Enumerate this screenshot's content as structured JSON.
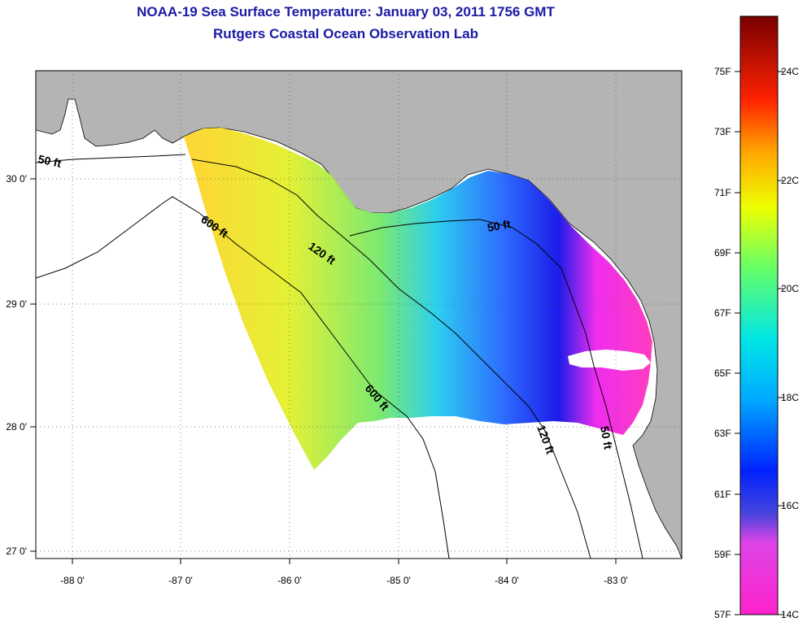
{
  "header": {
    "title": "NOAA-19 Sea Surface Temperature:  January 03, 2011 1756 GMT",
    "subtitle": "Rutgers Coastal Ocean Observation Lab"
  },
  "map": {
    "lon_ticks": [
      "-88 0'",
      "-87 0'",
      "-86 0'",
      "-85 0'",
      "-84 0'",
      "-83 0'"
    ],
    "lat_ticks": [
      "30 0'",
      "29 0'",
      "28 0'",
      "27 0'"
    ],
    "contour_labels": [
      "50 ft",
      "600 ft",
      "120 ft",
      "50 ft",
      "600 ft",
      "120 ft",
      "50 ft"
    ],
    "colors": {
      "land": "#b4b4b4",
      "ocean_nodata": "#ffffff"
    }
  },
  "colorbar": {
    "f_labels": [
      "75F",
      "73F",
      "71F",
      "69F",
      "67F",
      "65F",
      "63F",
      "61F",
      "59F",
      "57F"
    ],
    "c_labels": [
      "24C",
      "22C",
      "20C",
      "18C",
      "16C",
      "14C"
    ],
    "range_c": [
      14,
      25
    ]
  }
}
